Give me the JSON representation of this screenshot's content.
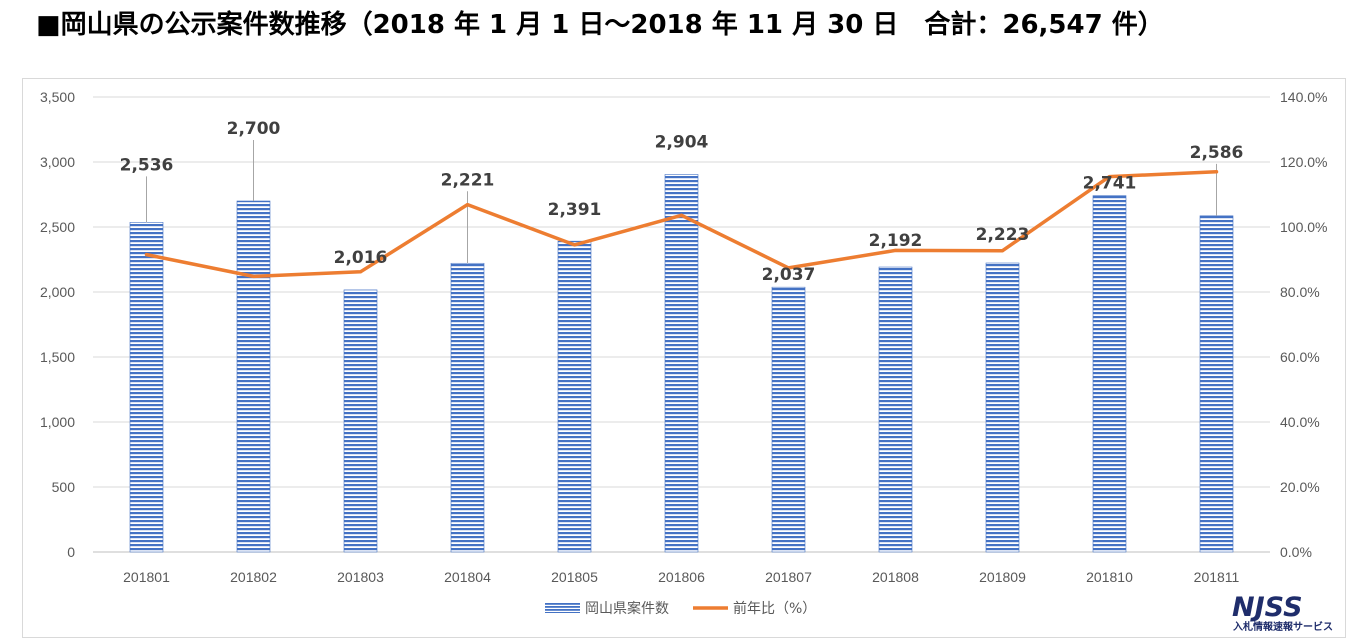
{
  "title": "■岡山県の公示案件数推移（2018 年 1 月 1 日～2018 年 11 月 30 日　合計：26,547 件）",
  "chart_data": {
    "type": "bar",
    "categories": [
      "201801",
      "201802",
      "201803",
      "201804",
      "201805",
      "201806",
      "201807",
      "201808",
      "201809",
      "201810",
      "201811"
    ],
    "series": [
      {
        "name": "岡山県案件数",
        "type": "bar",
        "axis": "left",
        "values": [
          2536,
          2700,
          2016,
          2221,
          2391,
          2904,
          2037,
          2192,
          2223,
          2741,
          2586
        ],
        "labels": [
          "2,536",
          "2,700",
          "2,016",
          "2,221",
          "2,391",
          "2,904",
          "2,037",
          "2,192",
          "2,223",
          "2,741",
          "2,586"
        ],
        "color": "#4472c4"
      },
      {
        "name": "前年比（%）",
        "type": "line",
        "axis": "right",
        "values": [
          91.5,
          84.8,
          86.2,
          106.9,
          94.5,
          103.6,
          87.4,
          92.8,
          92.7,
          115.5,
          117.0
        ],
        "color": "#ed7d31"
      }
    ],
    "y_left": {
      "range": [
        0,
        3500
      ],
      "ticks": [
        "0",
        "500",
        "1,000",
        "1,500",
        "2,000",
        "2,500",
        "3,000",
        "3,500"
      ]
    },
    "y_right": {
      "range": [
        0,
        140
      ],
      "ticks": [
        "0.0%",
        "20.0%",
        "40.0%",
        "60.0%",
        "80.0%",
        "100.0%",
        "120.0%",
        "140.0%"
      ]
    },
    "grid": true,
    "legend": "bottom"
  },
  "logo": {
    "main": "NJSS",
    "sub": "入札情報速報サービス"
  }
}
